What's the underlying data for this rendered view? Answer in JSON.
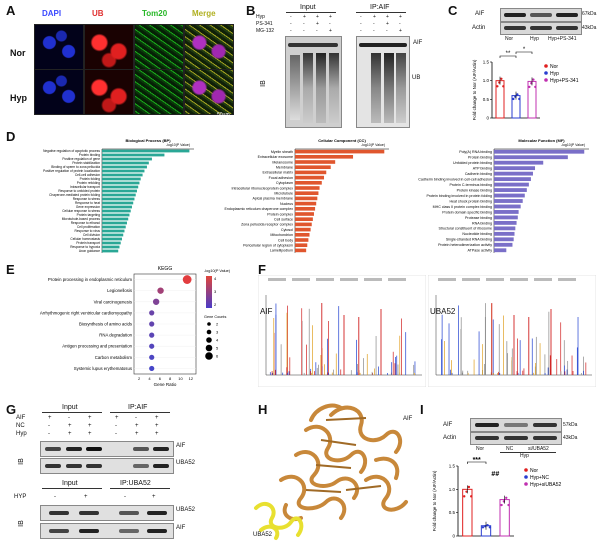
{
  "panels": {
    "A": {
      "label": "A",
      "stains": [
        "DAPI",
        "UB",
        "Tom20",
        "Merge"
      ],
      "stain_colors": [
        "#3a48ff",
        "#e03030",
        "#28b828",
        "#b0b020"
      ],
      "rows": [
        "Nor",
        "Hyp"
      ],
      "scale": "50μm"
    },
    "B": {
      "label": "B",
      "header_input": "Input",
      "header_ip": "IP:AIF",
      "conditions": [
        "Hyp",
        "PS-341",
        "MG-132"
      ],
      "signs": [
        [
          "-",
          "+",
          "+",
          "+",
          "-",
          "+",
          "+",
          "+"
        ],
        [
          "-",
          "-",
          "+",
          "-",
          "-",
          "-",
          "+",
          "-"
        ],
        [
          "-",
          "-",
          "-",
          "+",
          "-",
          "-",
          "-",
          "+"
        ]
      ],
      "band_aif": "AIF",
      "band_ub": "UB",
      "side": "IB"
    },
    "C": {
      "label": "C",
      "blot_rows": [
        "AIF",
        "Actin"
      ],
      "sizes": [
        "67kDa",
        "43kDa"
      ],
      "lanes": [
        "Nor",
        "Hyp",
        "Hyp+PS-341"
      ],
      "ylabel": "Fold change to Nor (AIF/Actin)",
      "stars": [
        "**",
        "*"
      ]
    },
    "D": {
      "label": "D",
      "plots": [
        {
          "title": "Biological Process (BP)",
          "xlabel": "-log10(P Value)",
          "terms": [
            "Negative regulation of apoptotic process",
            "Protein binding",
            "Positive regulation of gene",
            "Protein stabilization",
            "Binding of sperm to zona pellucida",
            "Positive regulation of protein localization",
            "Cell-cell adhesion",
            "Protein folding",
            "Protein refolding",
            "Intracellular transport",
            "Response to unfolded protein",
            "Chaperone-mediated protein folding",
            "Response to stress",
            "Response to heat",
            "Gene expression",
            "Cellular response to stress",
            "Protein targeting",
            "Microtubule-based process",
            "Response to ethanol",
            "Cell proliferation",
            "Response to virus",
            "Cell division",
            "Cellular homeostasis",
            "Protein transport",
            "Response to hypoxia",
            "Axon guidance"
          ]
        },
        {
          "title": "Cellular Component (CC)",
          "xlabel": "-log10(P Value)",
          "terms": [
            "Myelin sheath",
            "Extracellular exosome",
            "Melanosome",
            "Membrane",
            "Extracellular matrix",
            "Focal adhesion",
            "Cytoplasm",
            "Intracellular ribonucleoprotein complex",
            "Microtubule",
            "Apical plasma membrane",
            "Nucleus",
            "Endoplasmic reticulum chaperone complex",
            "Protein complex",
            "Cell surface",
            "Zona pellucida receptor complex",
            "Cytosol",
            "Mitochondrion",
            "Cell body",
            "Pericellular region of cytoplasm",
            "Lamellipodium"
          ]
        },
        {
          "title": "Molecular Function (MF)",
          "xlabel": "-log10(P Value)",
          "terms": [
            "Poly(A) RNA binding",
            "Protein binding",
            "Unfolded protein binding",
            "ATP binding",
            "Cadherin binding",
            "Cadherin binding involved in cell-cell adhesion",
            "Protein C-terminus binding",
            "Protein kinase binding",
            "Protein binding involved in protein folding",
            "Heat shock protein binding",
            "MHC class II protein complex binding",
            "Protein domain specific binding",
            "Protease binding",
            "RNA binding",
            "Structural constituent of ribosome",
            "Nucleotide binding",
            "Single-stranded RNA binding",
            "Protein heterodimerization activity",
            "ATPase activity"
          ]
        }
      ]
    },
    "E": {
      "label": "E",
      "title": "KEGG",
      "xlabel": "Gene Ratio",
      "legend_p": "-log10(P Value)",
      "legend_count": "Gene Counts",
      "count_values": [
        "2",
        "3",
        "4",
        "5",
        "6"
      ],
      "colorbar_ticks": [
        "4",
        "3",
        "2"
      ]
    },
    "F": {
      "label": "F",
      "proteins": [
        "AIF",
        "UBA52"
      ]
    },
    "G": {
      "label": "G",
      "header_input": "Input",
      "header_ip": "IP:AIF",
      "conds": [
        "AIF",
        "NC",
        "Hyp"
      ],
      "signs": [
        [
          "+",
          "-",
          "+",
          "+",
          "-",
          "+"
        ],
        [
          "-",
          "+",
          "+",
          "-",
          "+",
          "+"
        ],
        [
          "-",
          "+",
          "+",
          "-",
          "+",
          "+"
        ]
      ],
      "bands_top": [
        "AIF",
        "UBA52"
      ],
      "header_input2": "Input",
      "header_ip2": "IP:UBA52",
      "hyp_label": "HYP",
      "hyp_signs": [
        "-",
        "+",
        "-",
        "+"
      ],
      "bands_bottom": [
        "UBA52",
        "AIF"
      ],
      "side": "IB"
    },
    "H": {
      "label": "H",
      "aif": "AIF",
      "uba52": "UBA52"
    },
    "I": {
      "label": "I",
      "blot_rows": [
        "AIF",
        "Actin"
      ],
      "sizes": [
        "57kDa",
        "43kDa"
      ],
      "lanes": [
        "Nor",
        "NC",
        "si/UBA52"
      ],
      "group": "Hyp",
      "ylabel": "Fold change to Nor (AIF/Actin)",
      "stars": [
        "***",
        "##"
      ]
    }
  },
  "chart_data": [
    {
      "panel": "C",
      "type": "bar",
      "categories": [
        "Nor",
        "Hyp",
        "Hyp+PS-341"
      ],
      "values": [
        1.0,
        0.6,
        0.98
      ],
      "ylim": [
        0,
        1.5
      ],
      "yticks": [
        "0",
        "0.5",
        "1.0",
        "1.5"
      ],
      "legend": [
        "Nor",
        "Hyp",
        "Hyp+PS-341"
      ],
      "colors": [
        "#e02020",
        "#2a3ed0",
        "#c030b0"
      ],
      "ylabel": "Fold change to Nor (AIF/Actin)",
      "title": ""
    },
    {
      "panel": "D-BP",
      "type": "bar",
      "orientation": "horizontal",
      "categories": [
        "Negative regulation of apoptotic process",
        "Protein binding",
        "Positive regulation of gene",
        "Protein stabilization",
        "Binding of sperm to zona pellucida",
        "Positive regulation of protein localization",
        "Cell-cell adhesion",
        "Protein folding",
        "Protein refolding",
        "Intracellular transport",
        "Response to unfolded protein",
        "Chaperone-mediated protein folding",
        "Response to stress",
        "Response to heat",
        "Gene expression",
        "Cellular response to stress",
        "Protein targeting",
        "Microtubule-based process",
        "Response to ethanol",
        "Cell proliferation",
        "Response to virus",
        "Cell division",
        "Cellular homeostasis",
        "Protein transport",
        "Response to hypoxia",
        "Axon guidance"
      ],
      "values": [
        14,
        10,
        8,
        7.5,
        7.2,
        6.8,
        6.5,
        6.2,
        6,
        5.8,
        5.6,
        5.4,
        5.2,
        5,
        4.8,
        4.6,
        4.4,
        4.2,
        4,
        3.8,
        3.6,
        3.4,
        3.2,
        3.0,
        2.8,
        2.6
      ],
      "color": "#2aa796",
      "xlabel": "-log10(P Value)",
      "title": "Biological Process (BP)"
    },
    {
      "panel": "D-CC",
      "type": "bar",
      "orientation": "horizontal",
      "categories": [
        "Myelin sheath",
        "Extracellular exosome",
        "Melanosome",
        "Membrane",
        "Extracellular matrix",
        "Focal adhesion",
        "Cytoplasm",
        "Intracellular ribonucleoprotein complex",
        "Microtubule",
        "Apical plasma membrane",
        "Nucleus",
        "Endoplasmic reticulum chaperone complex",
        "Protein complex",
        "Cell surface",
        "Zona pellucida receptor complex",
        "Cytosol",
        "Mitochondrion",
        "Cell body",
        "Pericellular region of cytoplasm",
        "Lamellipodium"
      ],
      "values": [
        40,
        26,
        18,
        16,
        14,
        13,
        12,
        11,
        10.5,
        10,
        9.5,
        9,
        8.5,
        8,
        7.5,
        7,
        6.5,
        6,
        5.5,
        5
      ],
      "color": "#e0562e",
      "xlabel": "-log10(P Value)",
      "title": "Cellular Component (CC)"
    },
    {
      "panel": "D-MF",
      "type": "bar",
      "orientation": "horizontal",
      "categories": [
        "Poly(A) RNA binding",
        "Protein binding",
        "Unfolded protein binding",
        "ATP binding",
        "Cadherin binding",
        "Cadherin binding involved in cell-cell adhesion",
        "Protein C-terminus binding",
        "Protein kinase binding",
        "Protein binding involved in protein folding",
        "Heat shock protein binding",
        "MHC class II protein complex binding",
        "Protein domain specific binding",
        "Protease binding",
        "RNA binding",
        "Structural constituent of ribosome",
        "Nucleotide binding",
        "Single-stranded RNA binding",
        "Protein heterodimerization activity",
        "ATPase activity"
      ],
      "values": [
        22,
        18,
        12,
        10,
        9.5,
        9,
        8.5,
        8,
        7.5,
        7,
        6.5,
        6,
        5.8,
        5.5,
        5.2,
        5,
        4.8,
        4.5,
        3
      ],
      "color": "#7a6fc8",
      "xlabel": "-log10(P Value)",
      "title": "Molecular Function (MF)"
    },
    {
      "panel": "E",
      "type": "scatter",
      "title": "KEGG",
      "categories": [
        "Protein processing in endoplasmic reticulum",
        "Legionellosis",
        "Viral carcinogenesis",
        "Arrhythmogenic right ventricular cardiomyopathy",
        "Biosynthesis of amino acids",
        "RNA degradation",
        "Antigen processing and presentation",
        "Carbon metabolism",
        "Systemic lupus erythematosus"
      ],
      "x": [
        0.12,
        0.06,
        0.05,
        0.04,
        0.04,
        0.04,
        0.04,
        0.04,
        0.04
      ],
      "count": [
        6,
        4,
        4,
        3,
        3,
        3,
        3,
        3,
        3
      ],
      "p": [
        4.2,
        3.3,
        2.8,
        2.5,
        2.4,
        2.3,
        2.2,
        2.1,
        2.0
      ],
      "xlabel": "Gene Ratio",
      "xticks": [
        "2",
        "4",
        "6",
        "8",
        "10",
        "12"
      ],
      "xlim": [
        0,
        0.14
      ]
    },
    {
      "panel": "I",
      "type": "bar",
      "categories": [
        "Nor",
        "Hyp+NC",
        "Hyp+siUBA52"
      ],
      "values": [
        1.0,
        0.22,
        0.78
      ],
      "ylim": [
        0,
        1.5
      ],
      "yticks": [
        "0",
        "0.5",
        "1.0",
        "1.5"
      ],
      "legend": [
        "Nor",
        "Hyp+NC",
        "Hyp+siUBA52"
      ],
      "colors": [
        "#e02020",
        "#2a3ed0",
        "#c030b0"
      ],
      "ylabel": "Fold change to Nor (AIF/Actin)",
      "title": ""
    }
  ]
}
